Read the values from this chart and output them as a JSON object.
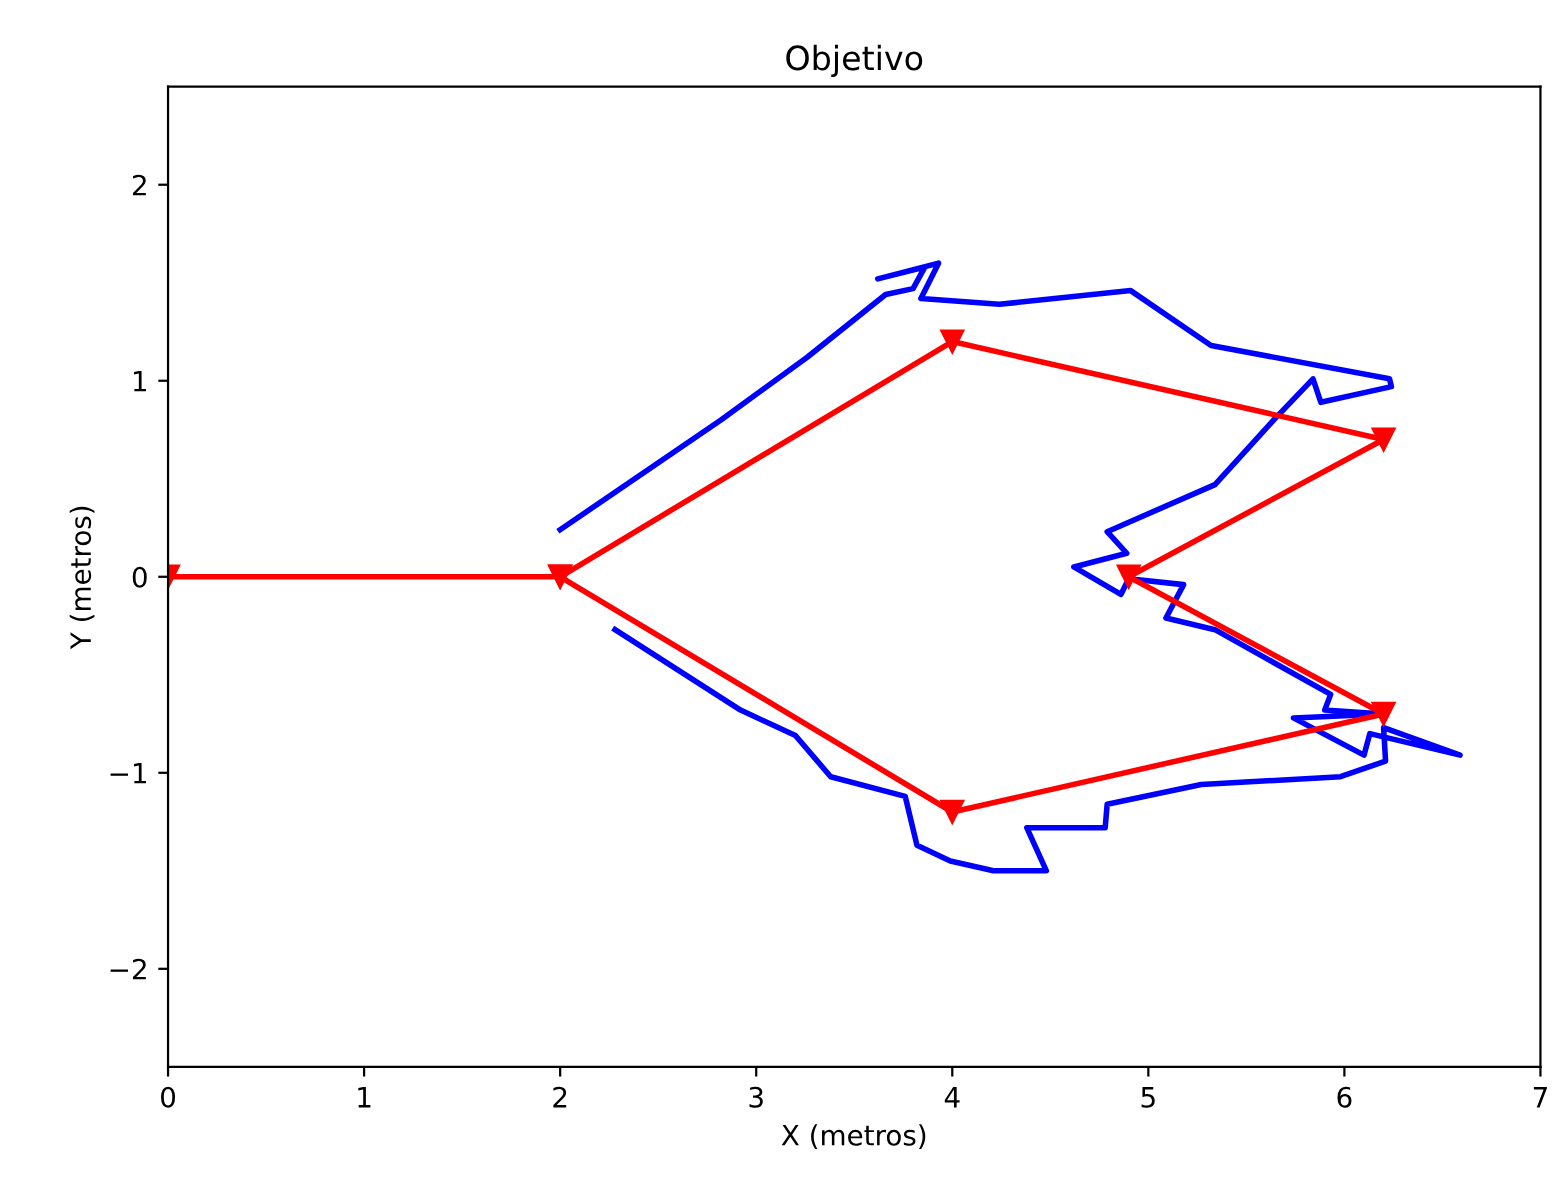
{
  "chart_data": {
    "type": "line",
    "title": "Objetivo",
    "xlabel": "X (metros)",
    "ylabel": "Y (metros)",
    "xlim": [
      0,
      7
    ],
    "ylim": [
      -2.5,
      2.5
    ],
    "xticks": [
      0,
      1,
      2,
      3,
      4,
      5,
      6,
      7
    ],
    "yticks": [
      {
        "value": -2,
        "label": "−2"
      },
      {
        "value": -1,
        "label": "−1"
      },
      0,
      1,
      2
    ],
    "grid": false,
    "legend": false,
    "series": [
      {
        "color": "#0000ff",
        "marker": "none",
        "x": [
          2.0,
          2.82,
          3.26,
          3.66,
          3.8,
          3.86,
          3.62,
          3.93,
          3.84,
          4.24,
          4.91,
          5.32,
          6.23,
          6.24,
          5.88,
          5.84,
          5.64,
          5.34,
          4.79,
          4.89,
          4.62,
          4.86,
          4.9,
          5.18,
          5.09,
          5.34,
          5.93,
          5.9,
          6.2,
          5.74,
          6.1,
          6.13,
          6.59,
          6.2,
          6.21,
          5.98,
          5.27,
          4.79,
          4.78,
          4.38,
          4.48,
          4.21,
          3.99,
          3.82,
          3.76,
          3.38,
          3.2,
          2.92,
          2.28
        ],
        "values": [
          0.24,
          0.8,
          1.12,
          1.44,
          1.47,
          1.58,
          1.52,
          1.6,
          1.42,
          1.39,
          1.46,
          1.18,
          1.01,
          0.97,
          0.89,
          1.01,
          0.8,
          0.47,
          0.23,
          0.12,
          0.05,
          -0.09,
          -0.01,
          -0.04,
          -0.21,
          -0.27,
          -0.6,
          -0.68,
          -0.7,
          -0.72,
          -0.91,
          -0.8,
          -0.91,
          -0.77,
          -0.94,
          -1.02,
          -1.06,
          -1.16,
          -1.28,
          -1.28,
          -1.5,
          -1.5,
          -1.45,
          -1.37,
          -1.12,
          -1.02,
          -0.81,
          -0.68,
          -0.27
        ]
      },
      {
        "color": "#ff0000",
        "marker": "triangle",
        "x": [
          0,
          2,
          4,
          6.2,
          4.9,
          6.2,
          4,
          2
        ],
        "values": [
          0,
          0,
          1.2,
          0.7,
          0,
          -0.7,
          -1.2,
          0
        ]
      }
    ]
  }
}
